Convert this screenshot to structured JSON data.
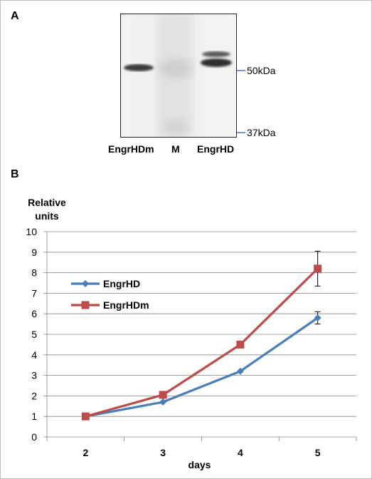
{
  "panel_a": {
    "letter": "A",
    "lanes": [
      "EngrHDm",
      "M",
      "EngrHD"
    ],
    "markers": [
      "50kDa",
      "37kDa"
    ],
    "marker_color": "#3b78c4"
  },
  "panel_b": {
    "letter": "B"
  },
  "chart_data": {
    "type": "line",
    "ylabel": "Relative units",
    "xlabel": "days",
    "categories": [
      "2",
      "3",
      "4",
      "5"
    ],
    "ylim": [
      0,
      10
    ],
    "yticks": [
      0,
      1,
      2,
      3,
      4,
      5,
      6,
      7,
      8,
      9,
      10
    ],
    "grid": true,
    "legend_position": "left",
    "series": [
      {
        "name": "EngrHD",
        "values": [
          1.0,
          1.7,
          3.2,
          5.8
        ],
        "errors": [
          0,
          0,
          0,
          0.3
        ],
        "color": "#4a7ebb",
        "marker": "diamond"
      },
      {
        "name": "EngrHDm",
        "values": [
          1.0,
          2.05,
          4.5,
          8.2
        ],
        "errors": [
          0,
          0,
          0,
          0.85
        ],
        "color": "#be4b48",
        "marker": "square"
      }
    ]
  }
}
